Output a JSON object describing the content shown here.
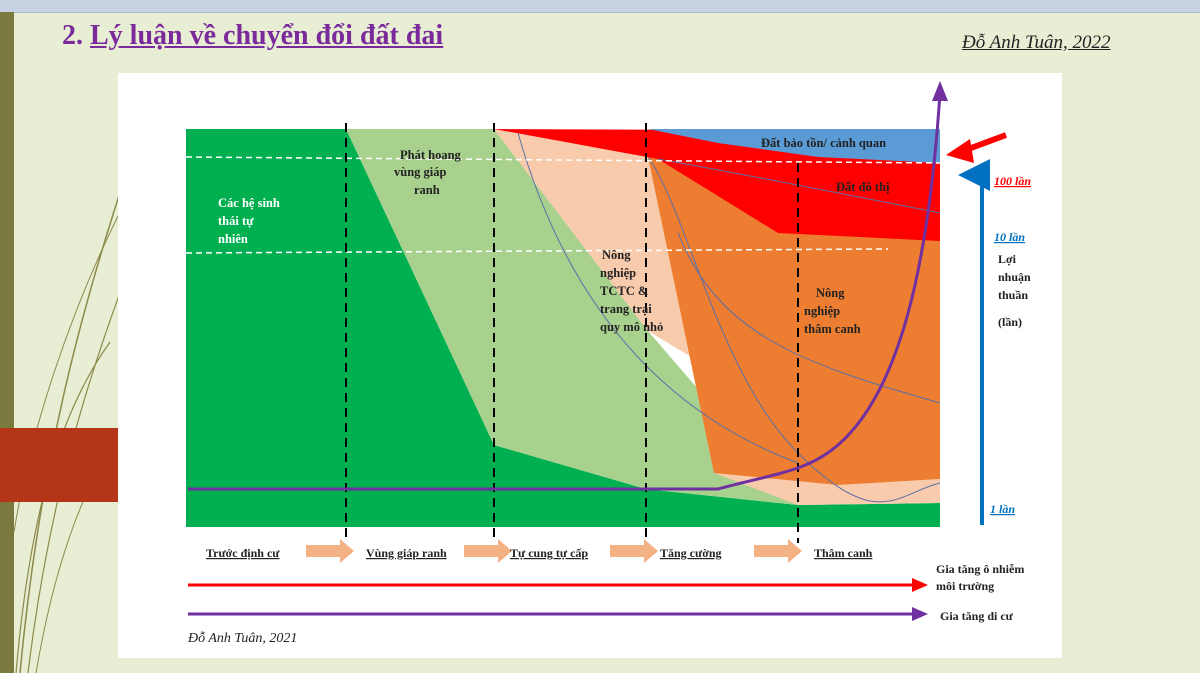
{
  "slide": {
    "title_prefix": "2. ",
    "title_main": "Lý luận về chuyển đổi đất đai",
    "author_top": "Đỗ Anh Tuân, 2022"
  },
  "figure": {
    "regions": {
      "natural": [
        "Các hệ sinh",
        "thái tự",
        "nhiên"
      ],
      "frontier": [
        "Phát hoang",
        "vùng giáp",
        "ranh"
      ],
      "subsistence": [
        "Nông",
        "nghiệp",
        "TCTC &",
        "trang trại",
        "quy mô nhỏ"
      ],
      "intensive": [
        "Nông",
        "nghiệp",
        "thâm canh"
      ],
      "conservation": "Đất bảo tồn/ cảnh quan",
      "urban": "Đất đô thị"
    },
    "profit_axis": {
      "ticks": [
        "100 lần",
        "10 lần",
        "1 lần"
      ],
      "label": [
        "Lợi",
        "nhuận",
        "thuần",
        "(lần)"
      ]
    },
    "stages": [
      "Trước định cư",
      "Vùng giáp ranh",
      "Tự cung tự cấp",
      "Tăng cường",
      "Thâm canh"
    ],
    "arrows": {
      "pollution": [
        "Gia tăng ô nhiễm",
        "môi trường"
      ],
      "migration": "Gia tăng di cư"
    },
    "author_bottom": "Đỗ Anh Tuân, 2021"
  },
  "colors": {
    "natural": "#00b050",
    "frontier": "#a9d18e",
    "subsistence": "#f8cbad",
    "intensive": "#ed7d31",
    "urban": "#ff0000",
    "conservation": "#5b9bd5",
    "profit_axis": "#0070c0",
    "migration": "#7030a0",
    "pollution": "#ff0000",
    "stage_arrow": "#f4b183",
    "title": "#7a2a9a"
  }
}
